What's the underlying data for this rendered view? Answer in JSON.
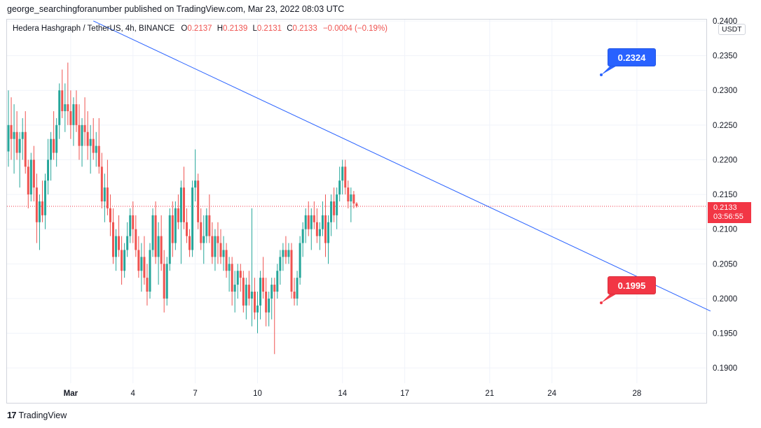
{
  "publisher_line": "george_searchingforanumber published on TradingView.com, Mar 23, 2022 08:03 UTC",
  "legend": {
    "symbol": "Hedera Hashgraph / TetherUS, 4h, BINANCE",
    "o_label": "O",
    "o_value": "0.2137",
    "h_label": "H",
    "h_value": "0.2139",
    "l_label": "L",
    "l_value": "0.2131",
    "c_label": "C",
    "c_value": "0.2133",
    "change": "−0.0004 (−0.19%)"
  },
  "currency": "USDT",
  "last_price": {
    "price": "0.2133",
    "countdown": "03:56:55"
  },
  "callouts": {
    "upper": "0.2324",
    "lower": "0.1995"
  },
  "footer": {
    "logo_text": "TradingView"
  },
  "colors": {
    "up": "#26a69a",
    "down": "#ef5350",
    "trendline": "#2962ff",
    "price_line": "#f23645"
  },
  "chart_data": {
    "type": "candlestick",
    "title": "Hedera Hashgraph / TetherUS, 4h, BINANCE",
    "ylim": [
      0.1878,
      0.2402
    ],
    "y_ticks": [
      "0.1900",
      "0.1950",
      "0.2000",
      "0.2050",
      "0.2100",
      "0.2150",
      "0.2200",
      "0.2250",
      "0.2300",
      "0.2350",
      "0.2400"
    ],
    "x_ticks": [
      {
        "label": "Mar",
        "bar": 22
      },
      {
        "label": "4",
        "bar": 44
      },
      {
        "label": "7",
        "bar": 66
      },
      {
        "label": "10",
        "bar": 88
      },
      {
        "label": "14",
        "bar": 118
      },
      {
        "label": "17",
        "bar": 140
      },
      {
        "label": "21",
        "bar": 170
      },
      {
        "label": "24",
        "bar": 192
      },
      {
        "label": "28",
        "bar": 222
      }
    ],
    "grid": true,
    "ohlc": [
      [
        0.2212,
        0.23,
        0.219,
        0.225
      ],
      [
        0.225,
        0.229,
        0.22,
        0.223
      ],
      [
        0.223,
        0.228,
        0.218,
        0.224
      ],
      [
        0.224,
        0.227,
        0.22,
        0.221
      ],
      [
        0.221,
        0.224,
        0.216,
        0.223
      ],
      [
        0.223,
        0.226,
        0.22,
        0.224
      ],
      [
        0.224,
        0.227,
        0.218,
        0.219
      ],
      [
        0.219,
        0.22,
        0.213,
        0.215
      ],
      [
        0.215,
        0.221,
        0.214,
        0.22
      ],
      [
        0.22,
        0.222,
        0.214,
        0.216
      ],
      [
        0.216,
        0.218,
        0.208,
        0.211
      ],
      [
        0.211,
        0.215,
        0.207,
        0.214
      ],
      [
        0.214,
        0.217,
        0.211,
        0.212
      ],
      [
        0.212,
        0.218,
        0.21,
        0.217
      ],
      [
        0.217,
        0.223,
        0.215,
        0.22
      ],
      [
        0.22,
        0.224,
        0.217,
        0.223
      ],
      [
        0.223,
        0.227,
        0.22,
        0.221
      ],
      [
        0.221,
        0.226,
        0.219,
        0.225
      ],
      [
        0.225,
        0.231,
        0.223,
        0.23
      ],
      [
        0.23,
        0.233,
        0.226,
        0.227
      ],
      [
        0.227,
        0.231,
        0.224,
        0.228
      ],
      [
        0.228,
        0.234,
        0.225,
        0.227
      ],
      [
        0.227,
        0.23,
        0.223,
        0.225
      ],
      [
        0.225,
        0.229,
        0.222,
        0.228
      ],
      [
        0.228,
        0.23,
        0.224,
        0.225
      ],
      [
        0.225,
        0.228,
        0.22,
        0.222
      ],
      [
        0.222,
        0.226,
        0.219,
        0.225
      ],
      [
        0.225,
        0.229,
        0.222,
        0.224
      ],
      [
        0.224,
        0.227,
        0.22,
        0.222
      ],
      [
        0.222,
        0.225,
        0.218,
        0.223
      ],
      [
        0.223,
        0.226,
        0.22,
        0.221
      ],
      [
        0.221,
        0.224,
        0.219,
        0.222
      ],
      [
        0.222,
        0.226,
        0.218,
        0.219
      ],
      [
        0.219,
        0.221,
        0.213,
        0.214
      ],
      [
        0.214,
        0.218,
        0.211,
        0.216
      ],
      [
        0.216,
        0.22,
        0.212,
        0.213
      ],
      [
        0.213,
        0.215,
        0.209,
        0.211
      ],
      [
        0.211,
        0.213,
        0.205,
        0.206
      ],
      [
        0.206,
        0.21,
        0.204,
        0.209
      ],
      [
        0.209,
        0.212,
        0.206,
        0.207
      ],
      [
        0.207,
        0.209,
        0.202,
        0.204
      ],
      [
        0.204,
        0.208,
        0.203,
        0.207
      ],
      [
        0.207,
        0.211,
        0.206,
        0.209
      ],
      [
        0.209,
        0.213,
        0.208,
        0.212
      ],
      [
        0.212,
        0.214,
        0.208,
        0.21
      ],
      [
        0.21,
        0.212,
        0.206,
        0.207
      ],
      [
        0.207,
        0.209,
        0.203,
        0.204
      ],
      [
        0.204,
        0.208,
        0.201,
        0.206
      ],
      [
        0.206,
        0.209,
        0.202,
        0.203
      ],
      [
        0.203,
        0.205,
        0.199,
        0.201
      ],
      [
        0.201,
        0.208,
        0.2,
        0.207
      ],
      [
        0.207,
        0.213,
        0.206,
        0.212
      ],
      [
        0.212,
        0.214,
        0.205,
        0.206
      ],
      [
        0.206,
        0.211,
        0.202,
        0.209
      ],
      [
        0.209,
        0.212,
        0.204,
        0.205
      ],
      [
        0.205,
        0.207,
        0.198,
        0.2
      ],
      [
        0.2,
        0.206,
        0.199,
        0.205
      ],
      [
        0.205,
        0.213,
        0.204,
        0.212
      ],
      [
        0.212,
        0.214,
        0.206,
        0.208
      ],
      [
        0.208,
        0.214,
        0.207,
        0.213
      ],
      [
        0.213,
        0.215,
        0.21,
        0.211
      ],
      [
        0.211,
        0.217,
        0.205,
        0.216
      ],
      [
        0.216,
        0.219,
        0.21,
        0.211
      ],
      [
        0.211,
        0.213,
        0.208,
        0.209
      ],
      [
        0.209,
        0.21,
        0.206,
        0.207
      ],
      [
        0.207,
        0.217,
        0.206,
        0.216
      ],
      [
        0.216,
        0.2215,
        0.214,
        0.217
      ],
      [
        0.217,
        0.218,
        0.21,
        0.211
      ],
      [
        0.211,
        0.213,
        0.207,
        0.208
      ],
      [
        0.208,
        0.212,
        0.205,
        0.209
      ],
      [
        0.209,
        0.213,
        0.208,
        0.212
      ],
      [
        0.212,
        0.215,
        0.208,
        0.209
      ],
      [
        0.209,
        0.211,
        0.205,
        0.206
      ],
      [
        0.206,
        0.21,
        0.204,
        0.209
      ],
      [
        0.209,
        0.211,
        0.205,
        0.208
      ],
      [
        0.208,
        0.21,
        0.205,
        0.206
      ],
      [
        0.206,
        0.209,
        0.204,
        0.207
      ],
      [
        0.207,
        0.208,
        0.203,
        0.204
      ],
      [
        0.204,
        0.206,
        0.201,
        0.205
      ],
      [
        0.205,
        0.206,
        0.199,
        0.201
      ],
      [
        0.201,
        0.204,
        0.198,
        0.202
      ],
      [
        0.202,
        0.205,
        0.2,
        0.204
      ],
      [
        0.204,
        0.205,
        0.201,
        0.203
      ],
      [
        0.203,
        0.204,
        0.198,
        0.199
      ],
      [
        0.199,
        0.203,
        0.197,
        0.202
      ],
      [
        0.202,
        0.204,
        0.199,
        0.2
      ],
      [
        0.2,
        0.213,
        0.196,
        0.201
      ],
      [
        0.201,
        0.203,
        0.197,
        0.198
      ],
      [
        0.198,
        0.201,
        0.195,
        0.199
      ],
      [
        0.199,
        0.204,
        0.197,
        0.203
      ],
      [
        0.203,
        0.206,
        0.2,
        0.201
      ],
      [
        0.201,
        0.203,
        0.196,
        0.198
      ],
      [
        0.198,
        0.201,
        0.196,
        0.2
      ],
      [
        0.2,
        0.203,
        0.197,
        0.202
      ],
      [
        0.202,
        0.203,
        0.192,
        0.201
      ],
      [
        0.201,
        0.205,
        0.2,
        0.204
      ],
      [
        0.204,
        0.207,
        0.202,
        0.206
      ],
      [
        0.206,
        0.208,
        0.204,
        0.207
      ],
      [
        0.207,
        0.209,
        0.205,
        0.206
      ],
      [
        0.206,
        0.208,
        0.205,
        0.207
      ],
      [
        0.207,
        0.208,
        0.2,
        0.201
      ],
      [
        0.201,
        0.203,
        0.199,
        0.2
      ],
      [
        0.2,
        0.204,
        0.199,
        0.203
      ],
      [
        0.203,
        0.209,
        0.202,
        0.208
      ],
      [
        0.208,
        0.211,
        0.206,
        0.21
      ],
      [
        0.21,
        0.213,
        0.208,
        0.212
      ],
      [
        0.212,
        0.214,
        0.209,
        0.21
      ],
      [
        0.21,
        0.213,
        0.207,
        0.212
      ],
      [
        0.212,
        0.214,
        0.21,
        0.211
      ],
      [
        0.211,
        0.213,
        0.208,
        0.209
      ],
      [
        0.209,
        0.211,
        0.207,
        0.21
      ],
      [
        0.21,
        0.214,
        0.209,
        0.212
      ],
      [
        0.212,
        0.215,
        0.206,
        0.208
      ],
      [
        0.208,
        0.212,
        0.205,
        0.211
      ],
      [
        0.211,
        0.215,
        0.209,
        0.214
      ],
      [
        0.214,
        0.216,
        0.211,
        0.212
      ],
      [
        0.212,
        0.216,
        0.21,
        0.215
      ],
      [
        0.215,
        0.219,
        0.214,
        0.217
      ],
      [
        0.217,
        0.22,
        0.215,
        0.219
      ],
      [
        0.219,
        0.22,
        0.215,
        0.216
      ],
      [
        0.216,
        0.217,
        0.213,
        0.214
      ],
      [
        0.214,
        0.216,
        0.211,
        0.215
      ],
      [
        0.215,
        0.2155,
        0.213,
        0.2137
      ],
      [
        0.2137,
        0.2139,
        0.2131,
        0.2133
      ]
    ],
    "ohlc_start_bar": 0,
    "last_price": 0.2133,
    "trendline": {
      "p1": {
        "bar": 30,
        "price": 0.24
      },
      "p2": {
        "bar": 248,
        "price": 0.1982
      }
    },
    "annotations": [
      {
        "text": "0.2324",
        "bar": 210,
        "price": 0.2324,
        "color": "#2962ff"
      },
      {
        "text": "0.1995",
        "bar": 210,
        "price": 0.1995,
        "color": "#f23645"
      }
    ]
  }
}
